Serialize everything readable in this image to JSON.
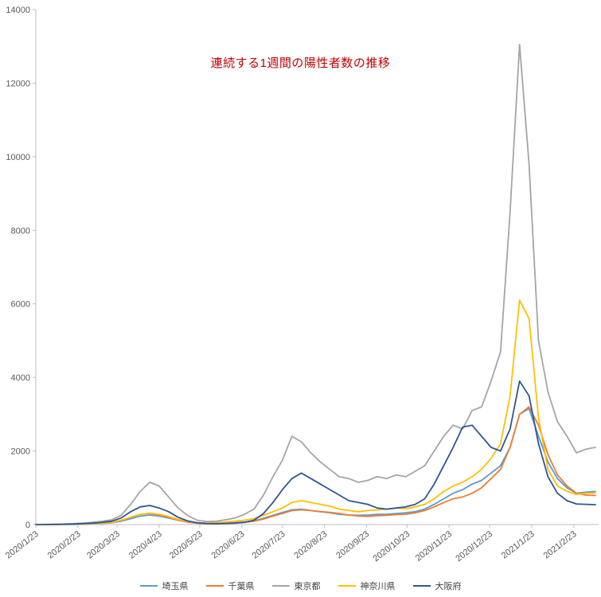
{
  "chart_data": {
    "type": "line",
    "title": "連続する1週間の陽性者数の推移",
    "title_color": "#C00000",
    "xlabel": "",
    "ylabel": "",
    "ylim": [
      0,
      14000
    ],
    "y_ticks": [
      0,
      2000,
      4000,
      6000,
      8000,
      10000,
      12000,
      14000
    ],
    "x_ticks": [
      "2020/1/23",
      "2020/2/23",
      "2020/3/23",
      "2020/4/23",
      "2020/5/23",
      "2020/6/23",
      "2020/7/23",
      "2020/8/23",
      "2020/9/23",
      "2020/10/23",
      "2020/11/23",
      "2020/12/23",
      "2021/1/23",
      "2021/2/23"
    ],
    "grid": false,
    "legend_position": "bottom",
    "axis_color": "#BFBFBF",
    "tick_label_color": "#595959",
    "dates": [
      "2020/1/23",
      "2020/1/30",
      "2020/2/6",
      "2020/2/13",
      "2020/2/20",
      "2020/2/27",
      "2020/3/5",
      "2020/3/12",
      "2020/3/19",
      "2020/3/26",
      "2020/4/2",
      "2020/4/9",
      "2020/4/16",
      "2020/4/23",
      "2020/4/30",
      "2020/5/7",
      "2020/5/14",
      "2020/5/21",
      "2020/5/28",
      "2020/6/4",
      "2020/6/11",
      "2020/6/18",
      "2020/6/25",
      "2020/7/2",
      "2020/7/9",
      "2020/7/16",
      "2020/7/23",
      "2020/7/30",
      "2020/8/6",
      "2020/8/13",
      "2020/8/20",
      "2020/8/27",
      "2020/9/3",
      "2020/9/10",
      "2020/9/17",
      "2020/9/24",
      "2020/10/1",
      "2020/10/8",
      "2020/10/15",
      "2020/10/22",
      "2020/10/29",
      "2020/11/5",
      "2020/11/12",
      "2020/11/19",
      "2020/11/26",
      "2020/12/3",
      "2020/12/10",
      "2020/12/17",
      "2020/12/24",
      "2020/12/31",
      "2021/1/7",
      "2021/1/14",
      "2021/1/21",
      "2021/1/28",
      "2021/2/4",
      "2021/2/11",
      "2021/2/18",
      "2021/2/25",
      "2021/3/4",
      "2021/3/11"
    ],
    "series": [
      {
        "name": "埼玉県",
        "color": "#5B9BD5",
        "values": [
          0,
          0,
          0,
          5,
          5,
          10,
          20,
          30,
          50,
          90,
          160,
          230,
          260,
          230,
          180,
          120,
          70,
          40,
          30,
          30,
          40,
          50,
          70,
          100,
          170,
          250,
          330,
          400,
          420,
          380,
          350,
          320,
          280,
          260,
          250,
          260,
          280,
          280,
          300,
          320,
          350,
          420,
          550,
          700,
          850,
          950,
          1100,
          1200,
          1400,
          1600,
          2100,
          3000,
          3150,
          2400,
          1700,
          1250,
          1000,
          850,
          880,
          900
        ]
      },
      {
        "name": "千葉県",
        "color": "#ED7D31",
        "values": [
          0,
          0,
          5,
          5,
          10,
          15,
          25,
          40,
          60,
          110,
          200,
          280,
          300,
          260,
          200,
          120,
          70,
          40,
          25,
          25,
          35,
          45,
          60,
          90,
          150,
          230,
          300,
          380,
          400,
          380,
          350,
          330,
          300,
          260,
          230,
          220,
          240,
          250,
          270,
          280,
          320,
          380,
          480,
          600,
          700,
          750,
          850,
          1000,
          1250,
          1500,
          2100,
          3000,
          3200,
          2700,
          1900,
          1350,
          1050,
          850,
          800,
          790
        ]
      },
      {
        "name": "東京都",
        "color": "#A5A5A5",
        "values": [
          0,
          5,
          10,
          15,
          25,
          40,
          60,
          90,
          130,
          250,
          550,
          900,
          1150,
          1050,
          750,
          450,
          250,
          120,
          80,
          90,
          130,
          180,
          280,
          420,
          800,
          1300,
          1750,
          2400,
          2250,
          1950,
          1700,
          1500,
          1300,
          1250,
          1150,
          1200,
          1300,
          1250,
          1350,
          1300,
          1450,
          1600,
          2000,
          2400,
          2700,
          2600,
          3100,
          3200,
          3900,
          4700,
          8500,
          13050,
          9800,
          5000,
          3600,
          2800,
          2400,
          1950,
          2050,
          2100
        ]
      },
      {
        "name": "神奈川県",
        "color": "#FFC000",
        "values": [
          0,
          0,
          5,
          5,
          10,
          15,
          25,
          40,
          60,
          120,
          200,
          280,
          310,
          280,
          220,
          140,
          90,
          50,
          40,
          50,
          70,
          90,
          120,
          160,
          250,
          350,
          450,
          600,
          650,
          600,
          550,
          500,
          420,
          380,
          350,
          380,
          400,
          420,
          450,
          430,
          480,
          550,
          700,
          900,
          1050,
          1150,
          1300,
          1500,
          1800,
          2200,
          3500,
          6100,
          5600,
          2900,
          1500,
          1050,
          900,
          820,
          850,
          860
        ]
      },
      {
        "name": "大阪府",
        "color": "#2F5597",
        "values": [
          0,
          0,
          5,
          10,
          15,
          25,
          40,
          60,
          90,
          180,
          350,
          480,
          520,
          450,
          350,
          200,
          100,
          50,
          30,
          25,
          30,
          40,
          60,
          120,
          300,
          600,
          950,
          1250,
          1400,
          1250,
          1100,
          950,
          800,
          650,
          600,
          550,
          450,
          420,
          450,
          480,
          550,
          700,
          1100,
          1600,
          2100,
          2650,
          2700,
          2400,
          2100,
          2000,
          2600,
          3900,
          3500,
          2200,
          1300,
          850,
          650,
          560,
          550,
          540
        ]
      }
    ]
  }
}
